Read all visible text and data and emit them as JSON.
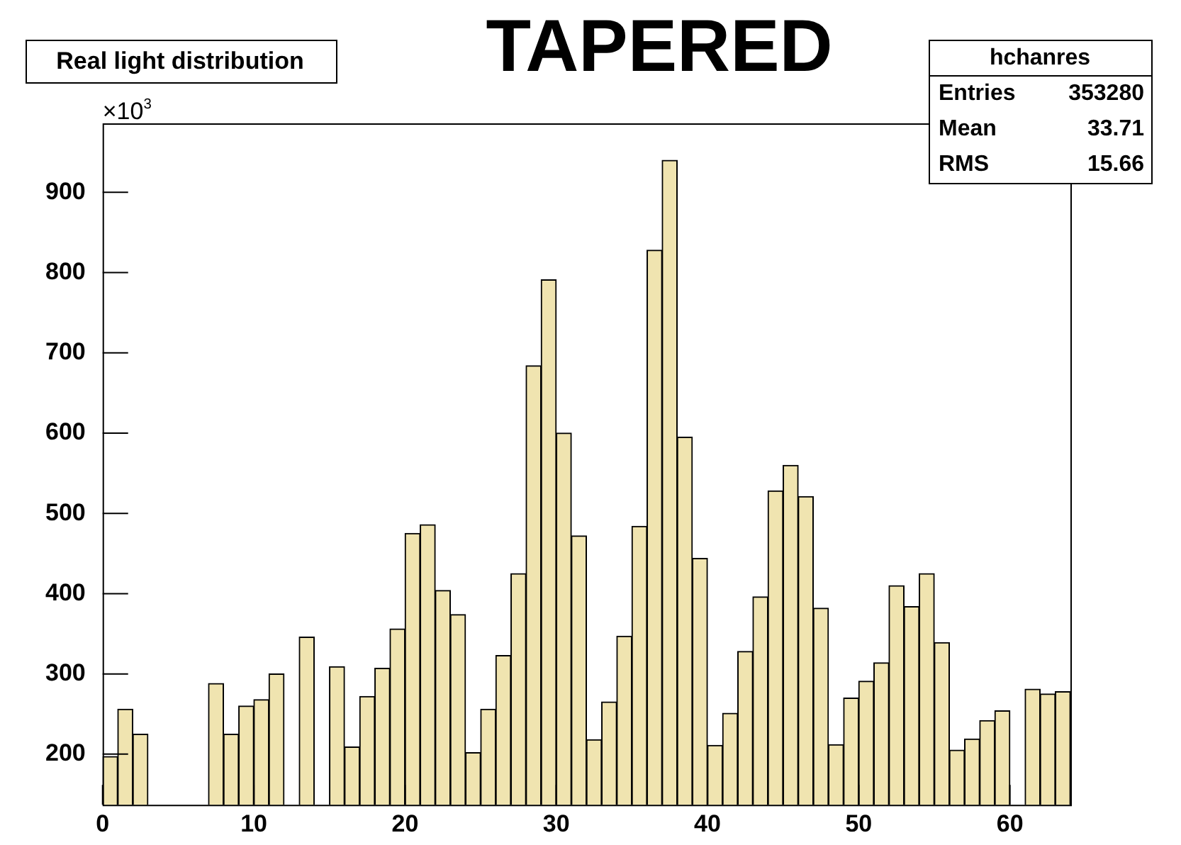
{
  "chart_data": {
    "type": "histogram",
    "title": "TAPERED",
    "subtitle": "Real light distribution",
    "bins": [
      0,
      1,
      2,
      3,
      4,
      5,
      6,
      7,
      8,
      9,
      10,
      11,
      12,
      13,
      14,
      15,
      16,
      17,
      18,
      19,
      20,
      21,
      22,
      23,
      24,
      25,
      26,
      27,
      28,
      29,
      30,
      31,
      32,
      33,
      34,
      35,
      36,
      37,
      38,
      39,
      40,
      41,
      42,
      43,
      44,
      45,
      46,
      47,
      48,
      49,
      50,
      51,
      52,
      53,
      54,
      55,
      56,
      57,
      58,
      59,
      60,
      61,
      62,
      63,
      64
    ],
    "values": [
      197,
      256,
      225,
      null,
      null,
      null,
      null,
      288,
      225,
      260,
      268,
      300,
      null,
      346,
      null,
      309,
      209,
      272,
      307,
      356,
      475,
      486,
      404,
      374,
      202,
      256,
      323,
      425,
      684,
      791,
      600,
      472,
      218,
      265,
      347,
      484,
      828,
      940,
      595,
      444,
      211,
      251,
      328,
      396,
      528,
      560,
      521,
      382,
      212,
      270,
      291,
      314,
      410,
      384,
      425,
      339,
      205,
      219,
      242,
      254,
      null,
      281,
      275,
      278
    ],
    "color": "#f0e4b0",
    "xlim": [
      0,
      64
    ],
    "xticks": [
      0,
      10,
      20,
      30,
      40,
      50,
      60
    ],
    "ylim": [
      137,
      986
    ],
    "yticks": [
      200,
      300,
      400,
      500,
      600,
      700,
      800,
      900
    ],
    "annotations": [
      "×10$^{3}$",
      "hchanres",
      "Entries 353280",
      "Mean 33.71",
      "RMS 15.66"
    ]
  }
}
